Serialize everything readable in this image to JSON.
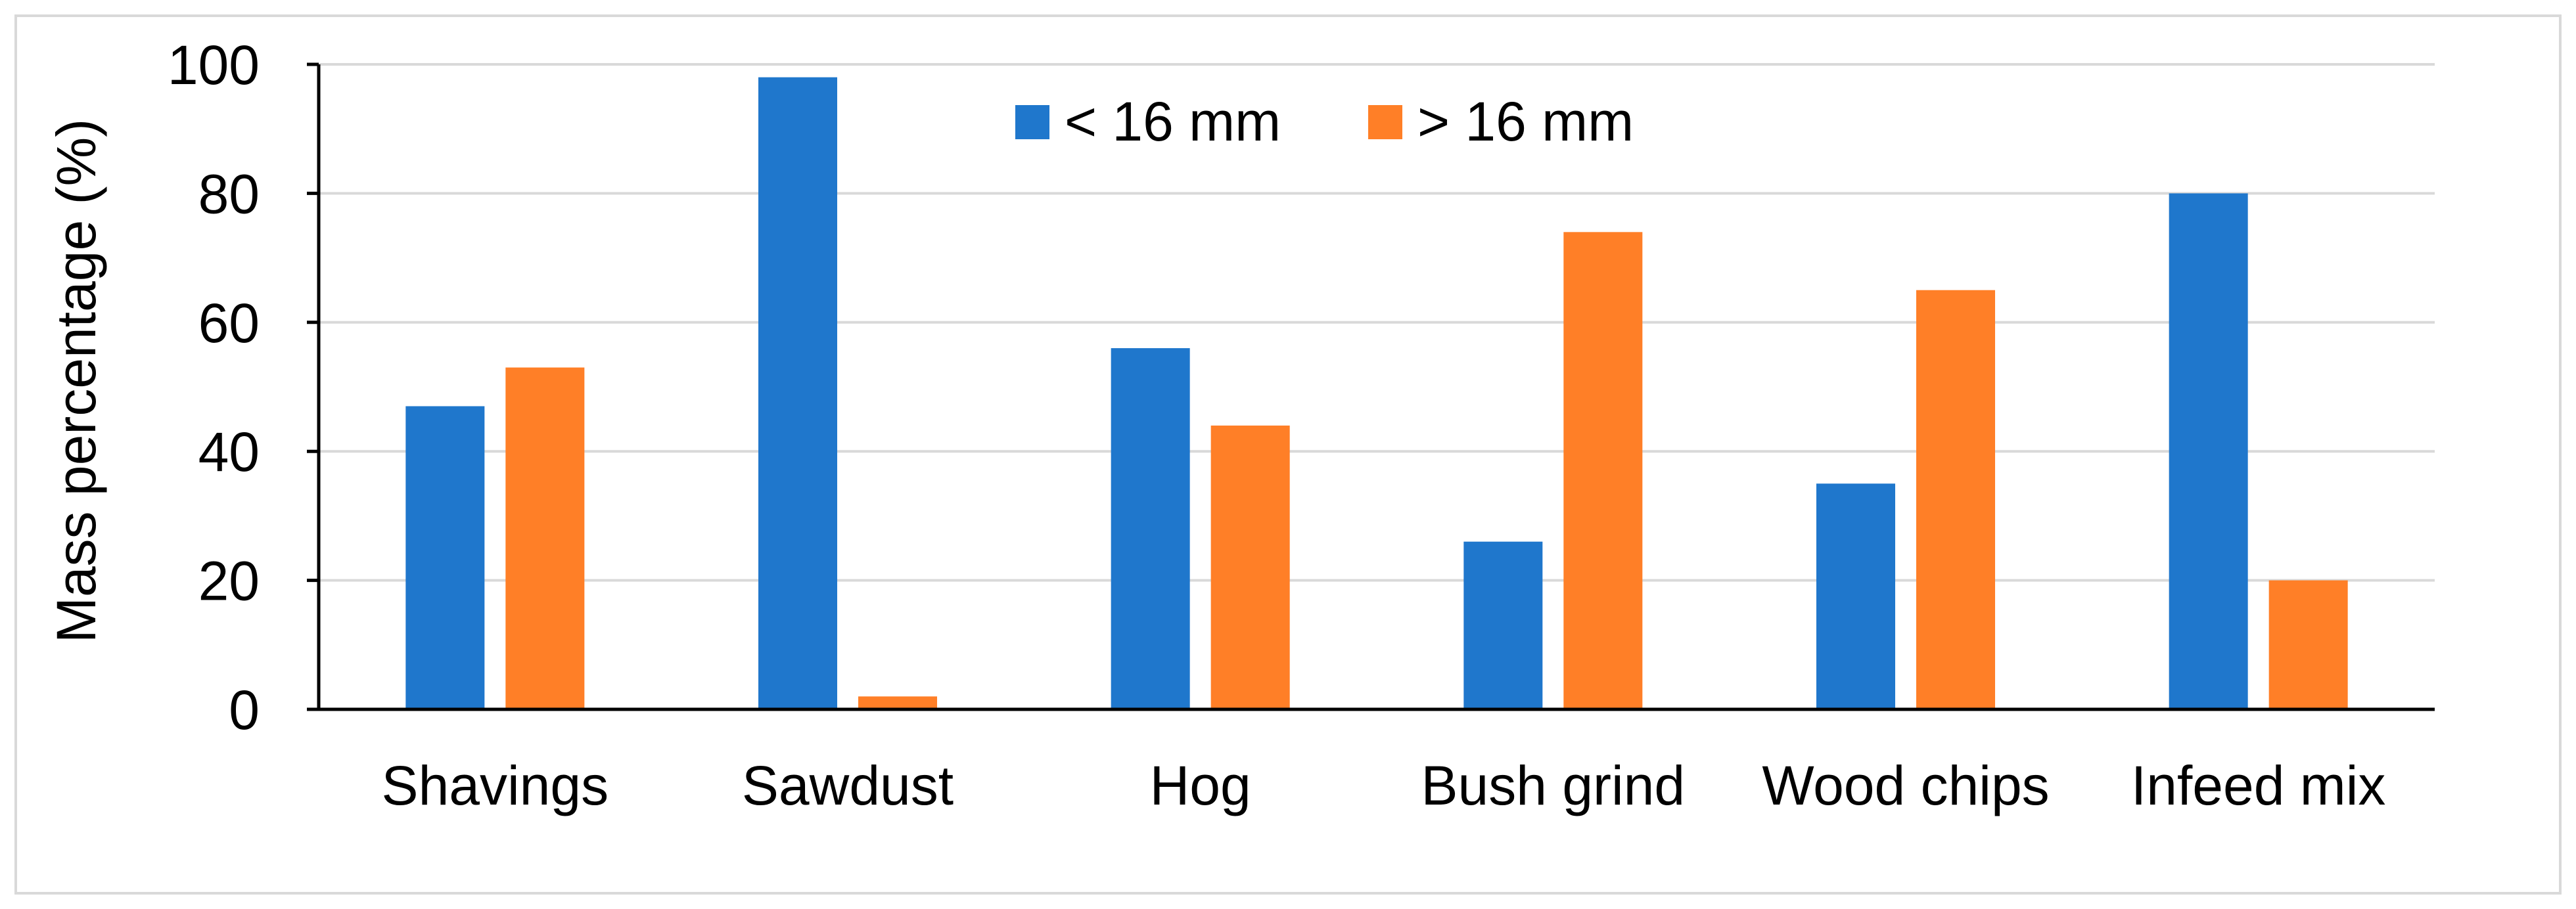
{
  "chart_data": {
    "type": "bar",
    "title": "",
    "xlabel": "",
    "ylabel": "Mass percentage (%)",
    "ylim": [
      0,
      100
    ],
    "yticks": [
      0,
      20,
      40,
      60,
      80,
      100
    ],
    "grid": true,
    "legend_position": "top",
    "categories": [
      "Shavings",
      "Sawdust",
      "Hog",
      "Bush grind",
      "Wood chips",
      "Infeed mix"
    ],
    "series": [
      {
        "name": "< 16 mm",
        "color": "#1F77CC",
        "values": [
          47,
          98,
          56,
          26,
          35,
          80
        ]
      },
      {
        "name": "> 16 mm",
        "color": "#FF7F27",
        "values": [
          53,
          2,
          44,
          74,
          65,
          20
        ]
      }
    ]
  }
}
